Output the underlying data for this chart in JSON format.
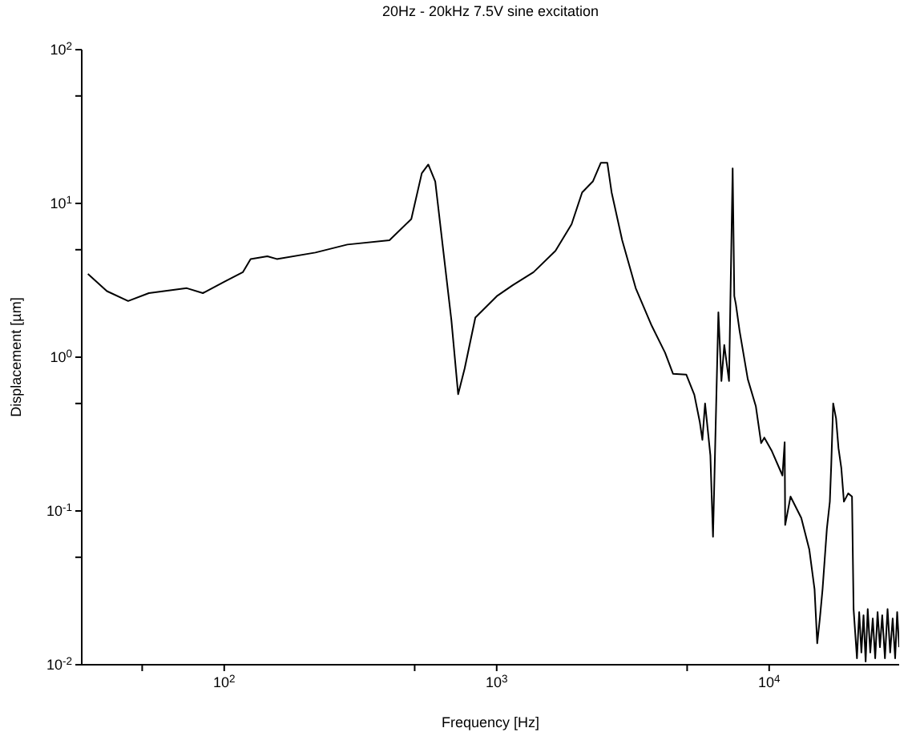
{
  "chart_data": {
    "type": "line",
    "title": "20Hz - 20kHz 7.5V sine excitation",
    "xlabel": "Frequency [Hz]",
    "ylabel": "Displacement [µm]",
    "log": "xy",
    "color": "#000000",
    "marker": "none",
    "line_style": "solid",
    "xlim": [
      30,
      30000
    ],
    "xticks": [
      {
        "value": 50,
        "label": null
      },
      {
        "value": 100,
        "label": "10$^{2}$"
      },
      {
        "value": 500,
        "label": null
      },
      {
        "value": 1000,
        "label": "10$^{3}$"
      },
      {
        "value": 5000,
        "label": null
      },
      {
        "value": 10000,
        "label": "10$^{4}$"
      }
    ],
    "ylim": [
      0.01,
      100
    ],
    "yticks": [
      {
        "value": 0.01,
        "label": "10$^{-2}$"
      },
      {
        "value": 0.05,
        "label": null
      },
      {
        "value": 0.1,
        "label": "10$^{-1}$"
      },
      {
        "value": 0.5,
        "label": null
      },
      {
        "value": 1,
        "label": "10$^{0}$"
      },
      {
        "value": 5,
        "label": null
      },
      {
        "value": 10,
        "label": "10$^{1}$"
      },
      {
        "value": 50,
        "label": null
      },
      {
        "value": 100,
        "label": "10$^{2}$"
      }
    ],
    "x": [
      31.6,
      37.1,
      44.4,
      52.9,
      72.9,
      83.5,
      100,
      117,
      125,
      144,
      156,
      216,
      283,
      404,
      486,
      531,
      561,
      595,
      637,
      682,
      722,
      763,
      835,
      1000,
      1145,
      1365,
      1643,
      1883,
      2059,
      2254,
      2412,
      2547,
      2641,
      2888,
      3238,
      3707,
      4149,
      4437,
      4966,
      5313,
      5563,
      5687,
      5818,
      6085,
      6222,
      6365,
      6511,
      6680,
      6843,
      7124,
      7346,
      7448,
      7548,
      7791,
      8347,
      8935,
      9345,
      9600,
      10233,
      11190,
      11400,
      11450,
      11977,
      13119,
      14041,
      14674,
      15012,
      15350,
      15704,
      16290,
      16700,
      16900,
      17180,
      17600,
      17970,
      18400,
      18810,
      19500,
      20140,
      20410,
      21000,
      21400,
      21800,
      22200,
      22600,
      23000,
      23500,
      24000,
      24500,
      25000,
      25500,
      26000,
      26600,
      27200,
      27800,
      28400,
      29000,
      29500,
      30000
    ],
    "values": [
      3.48,
      2.69,
      2.32,
      2.61,
      2.81,
      2.61,
      3.09,
      3.57,
      4.35,
      4.53,
      4.35,
      4.79,
      5.4,
      5.76,
      7.92,
      15.7,
      17.9,
      13.9,
      4.91,
      1.74,
      0.575,
      0.845,
      1.81,
      2.49,
      2.94,
      3.57,
      4.91,
      7.32,
      11.8,
      13.9,
      18.4,
      18.4,
      11.8,
      5.76,
      2.81,
      1.6,
      1.07,
      0.78,
      0.77,
      0.57,
      0.38,
      0.29,
      0.5,
      0.23,
      0.068,
      0.365,
      1.96,
      0.7,
      1.2,
      0.7,
      16.9,
      2.5,
      2.21,
      1.48,
      0.72,
      0.48,
      0.276,
      0.3,
      0.245,
      0.17,
      0.28,
      0.081,
      0.124,
      0.09,
      0.056,
      0.031,
      0.0138,
      0.02,
      0.031,
      0.077,
      0.115,
      0.2,
      0.5,
      0.4,
      0.255,
      0.19,
      0.115,
      0.13,
      0.124,
      0.023,
      0.011,
      0.022,
      0.012,
      0.021,
      0.0105,
      0.023,
      0.012,
      0.02,
      0.011,
      0.022,
      0.013,
      0.021,
      0.011,
      0.023,
      0.012,
      0.02,
      0.011,
      0.022,
      0.013
    ]
  }
}
